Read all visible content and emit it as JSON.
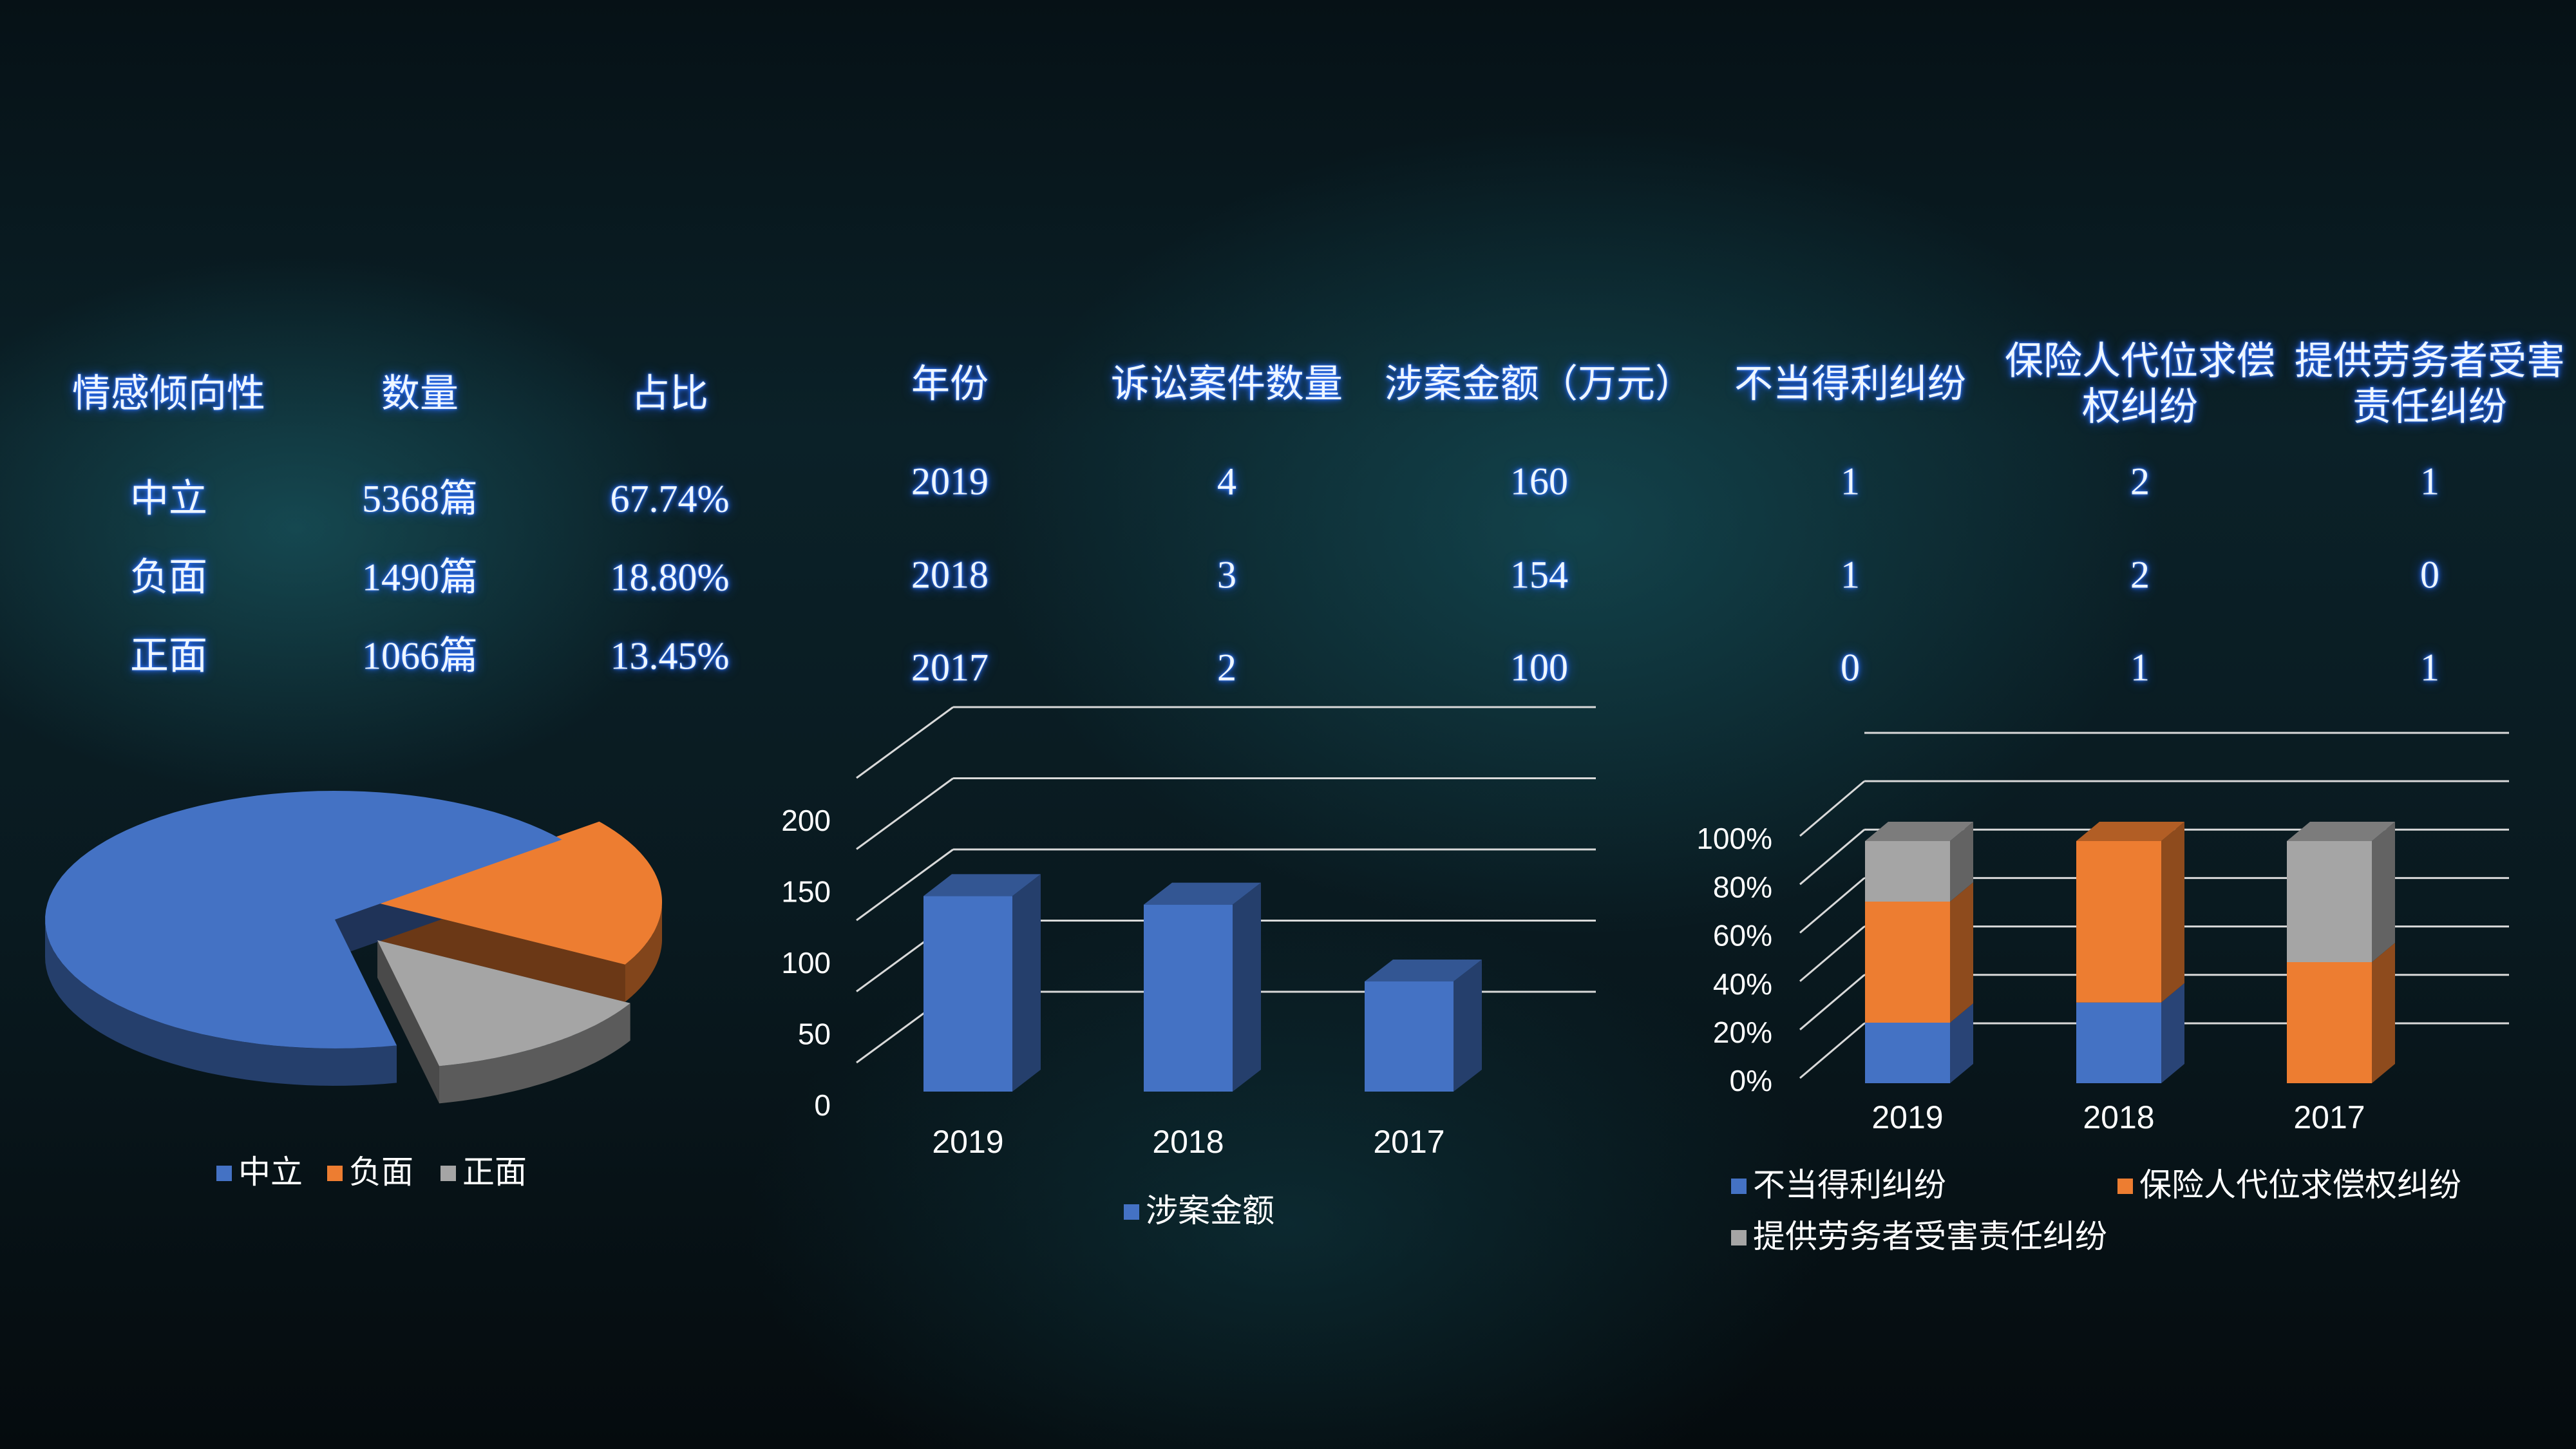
{
  "sentiment_table": {
    "headers": [
      "情感倾向性",
      "数量",
      "占比"
    ],
    "rows": [
      [
        "中立",
        "5368篇",
        "67.74%"
      ],
      [
        "负面",
        "1490篇",
        "18.80%"
      ],
      [
        "正面",
        "1066篇",
        "13.45%"
      ]
    ]
  },
  "case_table": {
    "headers": [
      "年份",
      "诉讼案件数量",
      "涉案金额（万元）",
      "不当得利纠纷",
      "保险人代位求偿权纠纷",
      "提供劳务者受害责任纠纷"
    ],
    "header_lines": [
      [
        "年份"
      ],
      [
        "诉讼案件数量"
      ],
      [
        "涉案金额（万元）"
      ],
      [
        "不当得利纠纷"
      ],
      [
        "保险人代位求偿",
        "权纠纷"
      ],
      [
        "提供劳务者受害",
        "责任纠纷"
      ]
    ],
    "rows": [
      [
        "2019",
        "4",
        "160",
        "1",
        "2",
        "1"
      ],
      [
        "2018",
        "3",
        "154",
        "1",
        "2",
        "0"
      ],
      [
        "2017",
        "2",
        "100",
        "0",
        "1",
        "1"
      ]
    ]
  },
  "chart_data": [
    {
      "type": "pie",
      "title": "",
      "labels": [
        "中立",
        "负面",
        "正面"
      ],
      "values": [
        67.74,
        18.8,
        13.45
      ],
      "colors": [
        "#4472C4",
        "#ED7D31",
        "#A5A5A5"
      ],
      "legend": "bottom"
    },
    {
      "type": "bar",
      "title": "",
      "categories": [
        "2019",
        "2018",
        "2017"
      ],
      "series": [
        {
          "name": "涉案金额",
          "values": [
            160,
            154,
            100
          ]
        }
      ],
      "ylim": [
        0,
        200
      ],
      "yticks": [
        "0",
        "50",
        "100",
        "150",
        "200"
      ],
      "grid": true,
      "colors": [
        "#4472C4"
      ],
      "legend": "bottom"
    },
    {
      "type": "bar",
      "stacked": "percent",
      "title": "",
      "categories": [
        "2019",
        "2018",
        "2017"
      ],
      "series": [
        {
          "name": "不当得利纠纷",
          "values": [
            1,
            1,
            0
          ]
        },
        {
          "name": "保险人代位求偿权纠纷",
          "values": [
            2,
            2,
            1
          ]
        },
        {
          "name": "提供劳务者受害责任纠纷",
          "values": [
            1,
            0,
            1
          ]
        }
      ],
      "ylim": [
        0,
        100
      ],
      "yticks": [
        "0%",
        "20%",
        "40%",
        "60%",
        "80%",
        "100%"
      ],
      "grid": true,
      "colors": [
        "#4472C4",
        "#ED7D31",
        "#A5A5A5"
      ],
      "legend": "bottom"
    }
  ]
}
